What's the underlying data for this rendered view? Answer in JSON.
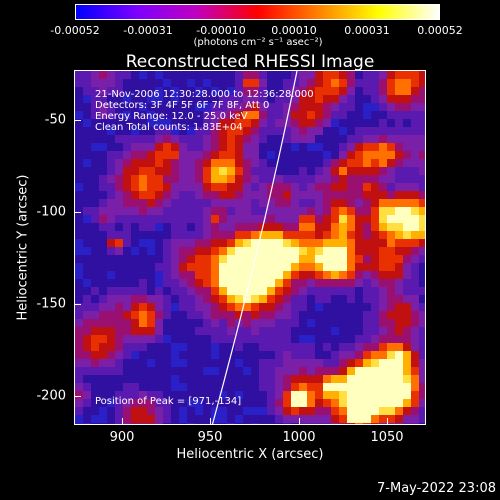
{
  "colorbar": {
    "ticks": [
      "-0.00052",
      "-0.00031",
      "-0.00010",
      "0.00010",
      "0.00031",
      "0.00052"
    ],
    "units": "(photons cm⁻² s⁻¹ asec⁻²)",
    "colors": [
      "#0000ff",
      "#7d00ff",
      "#c000c0",
      "#ff0000",
      "#ff8000",
      "#ffff00",
      "#ffffff"
    ]
  },
  "title": "Reconstructed RHESSI Image",
  "info": {
    "line1": "21-Nov-2006 12:30:28.000 to 12:36:28.000",
    "line2": "Detectors: 3F 4F 5F 6F 7F 8F, Att 0",
    "line3": "Energy Range: 12.0 - 25.0 keV",
    "line4": "Clean     Total counts: 1.83E+04"
  },
  "peak_label": "Position of Peak = [971,-134]",
  "x_axis": {
    "label": "Heliocentric X (arcsec)",
    "ticks": [
      "900",
      "950",
      "1000",
      "1050"
    ]
  },
  "y_axis": {
    "label": "Heliocentric Y (arcsec)",
    "ticks": [
      "-50",
      "-100",
      "-150",
      "-200"
    ]
  },
  "timestamp": "7-May-2022 23:08"
}
